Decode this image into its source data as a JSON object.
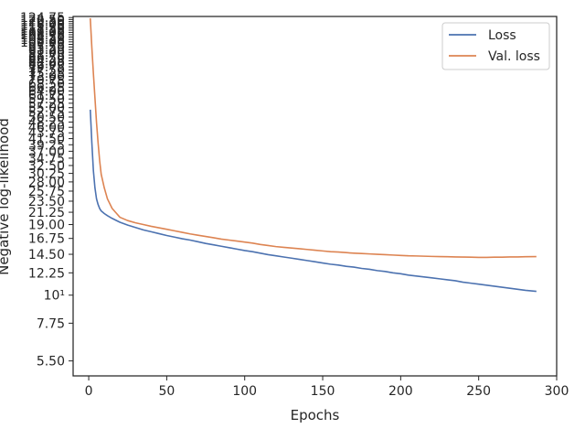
{
  "chart_data": {
    "type": "line",
    "xlabel": "Epochs",
    "ylabel": "Negative log-likelihood",
    "xlim": [
      -10,
      300
    ],
    "ylim": [
      4.8,
      126
    ],
    "yscale": "log",
    "grid": false,
    "legend_position": "upper-right",
    "x_ticks": [
      "0",
      "50",
      "100",
      "150",
      "200",
      "250",
      "300"
    ],
    "y_ticks": [
      {
        "value": 5.5,
        "label": "5.50"
      },
      {
        "value": 7.75,
        "label": "7.75"
      },
      {
        "value": 10,
        "label": "10¹"
      },
      {
        "value": 12.25,
        "label": "12.25"
      },
      {
        "value": 14.5,
        "label": "14.50"
      },
      {
        "value": 16.75,
        "label": "16.75"
      },
      {
        "value": 19.0,
        "label": "19.00"
      },
      {
        "value": 21.25,
        "label": "21.25"
      },
      {
        "value": 23.5,
        "label": "23.50"
      },
      {
        "value": 25.75,
        "label": "25.75"
      },
      {
        "value": 28.0,
        "label": "28.00"
      },
      {
        "value": 30.25,
        "label": "30.25"
      },
      {
        "value": 32.5,
        "label": "32.50"
      },
      {
        "value": 34.75,
        "label": "34.75"
      },
      {
        "value": 37.0,
        "label": "37.00"
      },
      {
        "value": 39.25,
        "label": "39.25"
      },
      {
        "value": 41.5,
        "label": "41.50"
      },
      {
        "value": 43.75,
        "label": "43.75"
      },
      {
        "value": 46.0,
        "label": "46.00"
      },
      {
        "value": 48.25,
        "label": "48.25"
      },
      {
        "value": 50.5,
        "label": "50.50"
      },
      {
        "value": 52.75,
        "label": "52.75"
      },
      {
        "value": 55.0,
        "label": "55.00"
      },
      {
        "value": 57.25,
        "label": "57.25"
      },
      {
        "value": 59.5,
        "label": "59.50"
      },
      {
        "value": 61.75,
        "label": "61.75"
      },
      {
        "value": 64.0,
        "label": "64.00"
      },
      {
        "value": 66.25,
        "label": "66.25"
      },
      {
        "value": 68.5,
        "label": "68.50"
      },
      {
        "value": 70.75,
        "label": "70.75"
      },
      {
        "value": 73.0,
        "label": "73.00"
      },
      {
        "value": 75.25,
        "label": "75.25"
      },
      {
        "value": 77.5,
        "label": "77.50"
      },
      {
        "value": 79.75,
        "label": "79.75"
      },
      {
        "value": 82.0,
        "label": "82.00"
      },
      {
        "value": 84.25,
        "label": "84.25"
      },
      {
        "value": 86.5,
        "label": "86.50"
      },
      {
        "value": 88.75,
        "label": "88.75"
      },
      {
        "value": 91.0,
        "label": "91.00"
      },
      {
        "value": 93.25,
        "label": "93.25"
      },
      {
        "value": 95.5,
        "label": "95.50"
      },
      {
        "value": 97.75,
        "label": "97.75"
      },
      {
        "value": 100.0,
        "label": "100.00"
      },
      {
        "value": 102.25,
        "label": "102.25"
      },
      {
        "value": 104.5,
        "label": "104.50"
      },
      {
        "value": 106.75,
        "label": "106.75"
      },
      {
        "value": 109.0,
        "label": "109.00"
      },
      {
        "value": 111.25,
        "label": "111.25"
      },
      {
        "value": 113.5,
        "label": "113.50"
      },
      {
        "value": 115.75,
        "label": "115.75"
      },
      {
        "value": 118.0,
        "label": "118.00"
      },
      {
        "value": 120.25,
        "label": "120.25"
      },
      {
        "value": 122.5,
        "label": "122.50"
      },
      {
        "value": 124.75,
        "label": "124.75"
      }
    ],
    "series": [
      {
        "name": "Loss",
        "color": "#4c72b0",
        "points": [
          [
            1,
            54.0
          ],
          [
            2,
            40.0
          ],
          [
            3,
            31.0
          ],
          [
            4,
            26.5
          ],
          [
            5,
            24.0
          ],
          [
            6,
            22.8
          ],
          [
            7,
            22.0
          ],
          [
            8,
            21.5
          ],
          [
            10,
            21.0
          ],
          [
            12,
            20.6
          ],
          [
            15,
            20.1
          ],
          [
            20,
            19.4
          ],
          [
            25,
            18.9
          ],
          [
            30,
            18.5
          ],
          [
            35,
            18.1
          ],
          [
            40,
            17.8
          ],
          [
            45,
            17.5
          ],
          [
            50,
            17.2
          ],
          [
            55,
            16.95
          ],
          [
            60,
            16.7
          ],
          [
            65,
            16.5
          ],
          [
            70,
            16.25
          ],
          [
            75,
            16.0
          ],
          [
            80,
            15.8
          ],
          [
            85,
            15.6
          ],
          [
            90,
            15.4
          ],
          [
            95,
            15.2
          ],
          [
            100,
            15.0
          ],
          [
            105,
            14.85
          ],
          [
            110,
            14.65
          ],
          [
            115,
            14.45
          ],
          [
            120,
            14.3
          ],
          [
            125,
            14.15
          ],
          [
            130,
            14.0
          ],
          [
            135,
            13.85
          ],
          [
            140,
            13.7
          ],
          [
            145,
            13.55
          ],
          [
            150,
            13.4
          ],
          [
            155,
            13.25
          ],
          [
            160,
            13.15
          ],
          [
            165,
            13.0
          ],
          [
            170,
            12.9
          ],
          [
            175,
            12.75
          ],
          [
            180,
            12.65
          ],
          [
            185,
            12.5
          ],
          [
            190,
            12.4
          ],
          [
            195,
            12.25
          ],
          [
            200,
            12.15
          ],
          [
            205,
            12.0
          ],
          [
            210,
            11.9
          ],
          [
            215,
            11.8
          ],
          [
            220,
            11.7
          ],
          [
            225,
            11.6
          ],
          [
            230,
            11.5
          ],
          [
            235,
            11.4
          ],
          [
            240,
            11.25
          ],
          [
            245,
            11.15
          ],
          [
            250,
            11.05
          ],
          [
            255,
            10.95
          ],
          [
            260,
            10.85
          ],
          [
            265,
            10.75
          ],
          [
            270,
            10.65
          ],
          [
            275,
            10.55
          ],
          [
            280,
            10.45
          ],
          [
            287,
            10.35
          ]
        ]
      },
      {
        "name": "Val. loss",
        "color": "#dd8452",
        "points": [
          [
            1,
            124.0
          ],
          [
            2,
            95.0
          ],
          [
            3,
            75.0
          ],
          [
            4,
            60.0
          ],
          [
            5,
            48.0
          ],
          [
            6,
            40.0
          ],
          [
            7,
            34.0
          ],
          [
            8,
            30.0
          ],
          [
            10,
            26.5
          ],
          [
            12,
            24.0
          ],
          [
            15,
            22.0
          ],
          [
            20,
            20.3
          ],
          [
            25,
            19.7
          ],
          [
            30,
            19.3
          ],
          [
            35,
            19.0
          ],
          [
            40,
            18.7
          ],
          [
            45,
            18.45
          ],
          [
            50,
            18.2
          ],
          [
            55,
            17.95
          ],
          [
            60,
            17.7
          ],
          [
            65,
            17.45
          ],
          [
            70,
            17.25
          ],
          [
            75,
            17.05
          ],
          [
            80,
            16.85
          ],
          [
            85,
            16.65
          ],
          [
            90,
            16.5
          ],
          [
            95,
            16.35
          ],
          [
            100,
            16.2
          ],
          [
            105,
            16.05
          ],
          [
            110,
            15.85
          ],
          [
            115,
            15.7
          ],
          [
            120,
            15.55
          ],
          [
            125,
            15.45
          ],
          [
            130,
            15.35
          ],
          [
            135,
            15.25
          ],
          [
            140,
            15.15
          ],
          [
            145,
            15.05
          ],
          [
            150,
            14.95
          ],
          [
            155,
            14.85
          ],
          [
            160,
            14.8
          ],
          [
            165,
            14.72
          ],
          [
            170,
            14.65
          ],
          [
            175,
            14.6
          ],
          [
            180,
            14.55
          ],
          [
            185,
            14.5
          ],
          [
            190,
            14.45
          ],
          [
            195,
            14.4
          ],
          [
            200,
            14.35
          ],
          [
            205,
            14.3
          ],
          [
            210,
            14.28
          ],
          [
            215,
            14.25
          ],
          [
            220,
            14.22
          ],
          [
            225,
            14.2
          ],
          [
            230,
            14.18
          ],
          [
            235,
            14.16
          ],
          [
            240,
            14.14
          ],
          [
            245,
            14.12
          ],
          [
            250,
            14.1
          ],
          [
            255,
            14.1
          ],
          [
            260,
            14.12
          ],
          [
            265,
            14.12
          ],
          [
            270,
            14.15
          ],
          [
            275,
            14.15
          ],
          [
            280,
            14.18
          ],
          [
            287,
            14.2
          ]
        ]
      }
    ]
  }
}
